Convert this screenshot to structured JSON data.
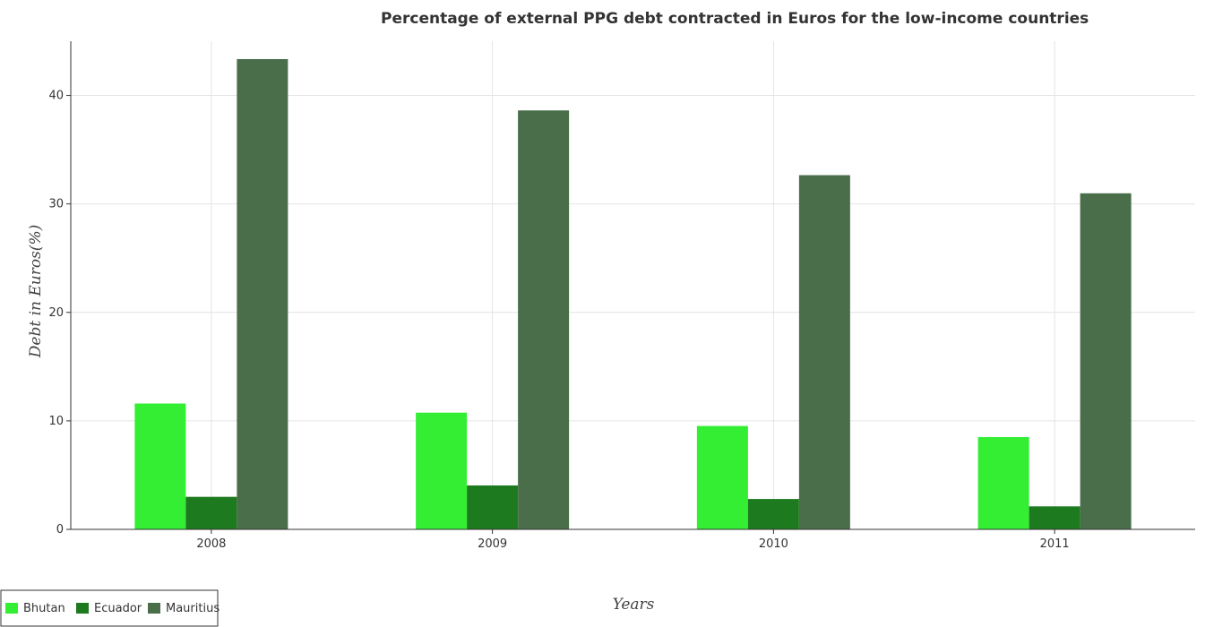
{
  "chart_data": {
    "type": "bar",
    "title": "Percentage of external PPG debt contracted in Euros for the low-income countries",
    "xlabel": "Years",
    "ylabel": "Debt in Euros(%)",
    "categories": [
      "2008",
      "2009",
      "2010",
      "2011"
    ],
    "ylim": [
      0,
      45
    ],
    "yticks": [
      0,
      10,
      20,
      30,
      40
    ],
    "grid": true,
    "legend_position": "bottom-left",
    "series": [
      {
        "name": "Bhutan",
        "color": "#33ee33",
        "values": [
          11.6,
          10.76,
          9.53,
          8.51
        ]
      },
      {
        "name": "Ecuador",
        "color": "#1e7a1e",
        "values": [
          3.0,
          4.05,
          2.8,
          2.12
        ]
      },
      {
        "name": "Mauritius",
        "color": "#4a6e4a",
        "values": [
          43.35,
          38.62,
          32.65,
          30.98
        ]
      }
    ]
  }
}
